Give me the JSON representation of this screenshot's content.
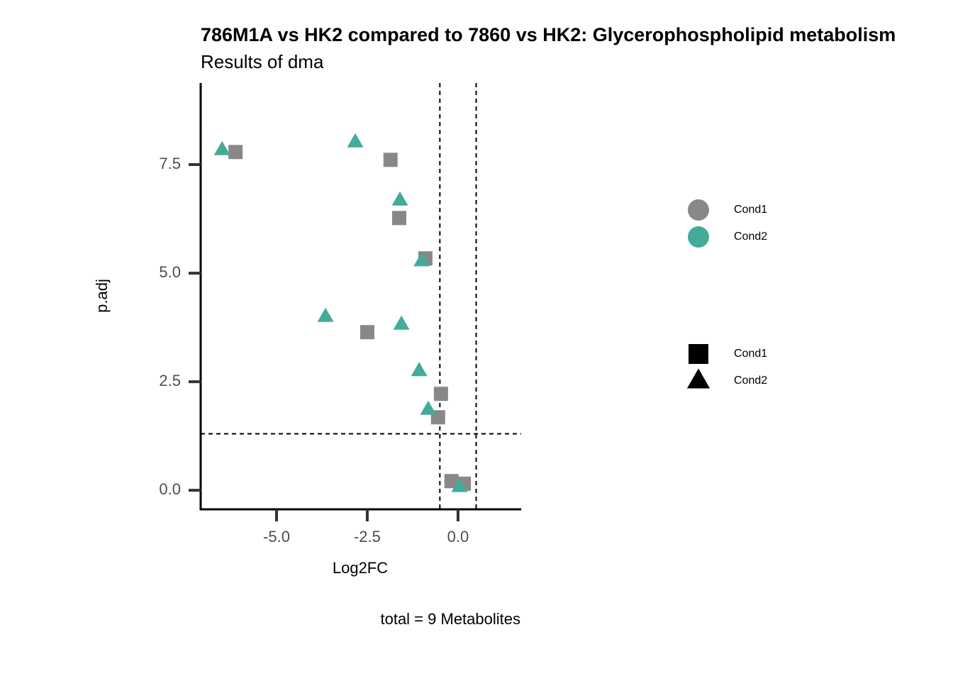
{
  "chart_data": {
    "type": "scatter",
    "title": "786M1A vs HK2 compared to 7860 vs HK2: Glycerophospholipid metabolism",
    "subtitle": "Results of dma",
    "x_label": "Log2FC",
    "y_label": "p.adj",
    "caption": "total = 9 Metabolites",
    "xlim": [
      -7.09,
      1.74
    ],
    "ylim": [
      -0.44,
      9.38
    ],
    "xticks": [
      {
        "value": -5,
        "label": "-5.0"
      },
      -2.5,
      {
        "value": 0,
        "label": "0.0"
      }
    ],
    "yticks": [
      {
        "value": 0,
        "label": "0.0"
      },
      2.5,
      {
        "value": 5,
        "label": "5.0"
      },
      7.5
    ],
    "reference_lines": {
      "x": [
        -0.5,
        0.5
      ],
      "y": 1.3
    },
    "grid": false,
    "series": [
      {
        "name": "Cond1",
        "color": "#888888",
        "shape": "square",
        "x": [
          -6.13,
          -1.86,
          -1.62,
          -0.9,
          -2.5,
          -0.47,
          -0.55,
          -0.18,
          0.16
        ],
        "values": [
          7.79,
          7.61,
          6.27,
          5.34,
          3.64,
          2.22,
          1.68,
          0.21,
          0.15
        ]
      },
      {
        "name": "Cond2",
        "color": "#44aa99",
        "shape": "triangle",
        "x": [
          -6.5,
          -2.83,
          -1.6,
          -1.0,
          -3.65,
          -1.56,
          -1.07,
          -0.82,
          0.04
        ],
        "values": [
          7.84,
          8.02,
          6.68,
          5.28,
          4.0,
          3.82,
          2.75,
          1.86,
          0.08
        ]
      }
    ]
  }
}
